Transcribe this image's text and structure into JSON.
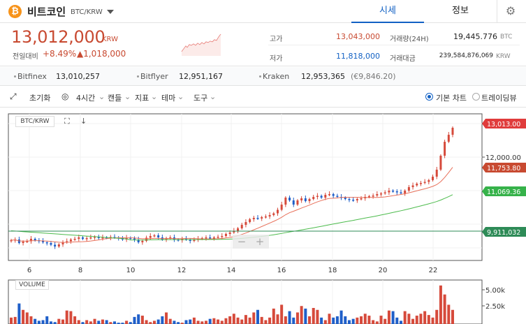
{
  "header": {
    "coin_logo": "₿",
    "coin_name": "비트코인",
    "pair": "BTC/KRW",
    "tabs": [
      {
        "label": "시세",
        "active": true
      },
      {
        "label": "정보",
        "active": false
      }
    ],
    "settings_icon": "gear-icon"
  },
  "price": {
    "current": "13,012,000",
    "unit": "KRW",
    "change_label": "전일대비",
    "change_pct": "+8.49%",
    "change_amt": "▲1,018,000",
    "color_up": "#c84a31",
    "color_down": "#1261c4"
  },
  "stats": {
    "high_label": "고가",
    "high_value": "13,043,000",
    "low_label": "저가",
    "low_value": "11,818,000",
    "volume_label": "거래량(24H)",
    "volume_value": "19,445.776",
    "volume_unit": "BTC",
    "amount_label": "거래대금",
    "amount_value": "239,584,876,069",
    "amount_unit": "KRW"
  },
  "exchanges": [
    {
      "name": "Bitfinex",
      "value": "13,010,257"
    },
    {
      "name": "Bitflyer",
      "value": "12,951,167"
    },
    {
      "name": "Kraken",
      "value": "12,953,365",
      "extra": "(€9,846.20)"
    }
  ],
  "toolbar": {
    "expand_icon": "⤢",
    "reset": "초기화",
    "interval": "4시간",
    "candle": "캔들",
    "indicator": "지표",
    "theme": "테마",
    "tools": "도구",
    "chart_basic": "기본 차트",
    "chart_tradingview": "트레이딩뷰"
  },
  "chart_overlay": {
    "pair_tag": "BTC/KRW",
    "volume_tag": "VOLUME",
    "zoom_out": "−",
    "zoom_in": "+"
  },
  "chart_data": {
    "type": "candlestick",
    "x_ticks": [
      "6",
      "8",
      "10",
      "12",
      "14",
      "16",
      "18",
      "20",
      "22"
    ],
    "y_ticks": [
      "12,000.00"
    ],
    "price_labels": [
      {
        "value": "13,013.00",
        "color": "#e03c3c"
      },
      {
        "value": "11,753.80",
        "color": "#c84a31"
      },
      {
        "value": "11,069.36",
        "color": "#36b24a"
      },
      {
        "value": "9,911,032",
        "color": "#2e8b57"
      }
    ],
    "volume_ticks": [
      "5.00k",
      "2.50k"
    ],
    "up_color": "#d64a3b",
    "down_color": "#1f5fc9",
    "ma_short_color": "#e8705a",
    "ma_long_color": "#4cbb4c",
    "ref_line_color": "#2e8b57",
    "closes": [
      9.78,
      9.8,
      9.7,
      9.74,
      9.75,
      9.82,
      9.78,
      9.76,
      9.72,
      9.7,
      9.65,
      9.6,
      9.66,
      9.72,
      9.75,
      9.8,
      9.82,
      9.86,
      9.82,
      9.84,
      9.86,
      9.88,
      9.84,
      9.86,
      9.85,
      9.87,
      9.86,
      9.84,
      9.8,
      9.85,
      9.83,
      9.8,
      9.72,
      9.76,
      9.85,
      9.9,
      9.92,
      9.86,
      9.8,
      9.84,
      9.86,
      9.8,
      9.78,
      9.82,
      9.8,
      9.76,
      9.8,
      9.82,
      9.84,
      9.86,
      9.84,
      9.86,
      9.88,
      9.9,
      9.96,
      10.0,
      10.05,
      10.12,
      10.22,
      10.3,
      10.38,
      10.42,
      10.4,
      10.44,
      10.46,
      10.5,
      10.55,
      10.65,
      10.8,
      11.0,
      10.92,
      10.8,
      10.92,
      10.98,
      10.9,
      10.96,
      11.02,
      11.05,
      11.0,
      11.08,
      11.1,
      11.05,
      11.02,
      11.0,
      10.96,
      10.94,
      10.92,
      10.96,
      10.98,
      11.02,
      11.04,
      11.06,
      11.1,
      11.12,
      11.15,
      11.2,
      11.18,
      11.15,
      11.12,
      11.2,
      11.3,
      11.35,
      11.4,
      11.42,
      11.45,
      11.5,
      11.6,
      11.8,
      12.2,
      12.6,
      12.8,
      13.0
    ],
    "volumes": [
      1.0,
      1.1,
      3.2,
      2.2,
      1.8,
      1.2,
      0.8,
      0.5,
      0.6,
      1.2,
      0.4,
      0.3,
      0.8,
      0.7,
      2.1,
      2.0,
      1.2,
      0.6,
      0.3,
      0.6,
      0.4,
      0.8,
      0.5,
      0.7,
      0.6,
      0.3,
      0.4,
      0.2,
      0.2,
      0.5,
      0.3,
      1.1,
      1.5,
      1.3,
      0.6,
      0.3,
      0.5,
      0.7,
      1.2,
      1.8,
      0.8,
      0.5,
      0.3,
      0.2,
      0.6,
      0.7,
      1.0,
      0.5,
      0.4,
      0.5,
      0.8,
      0.9,
      0.7,
      0.5,
      0.9,
      1.2,
      1.6,
      1.0,
      0.7,
      1.4,
      1.0,
      1.8,
      2.2,
      1.1,
      0.6,
      1.0,
      2.4,
      1.5,
      3.0,
      1.2,
      2.0,
      1.0,
      1.8,
      2.8,
      2.4,
      1.2,
      2.5,
      2.2,
      1.0,
      0.6,
      1.6,
      1.0,
      1.2,
      2.1,
      1.2,
      0.6,
      0.8,
      1.0,
      1.2,
      1.6,
      1.3,
      0.6,
      0.4,
      1.3,
      0.8,
      2.1,
      2.0,
      1.0,
      0.5,
      2.0,
      1.6,
      0.8,
      1.3,
      1.6,
      2.0,
      1.4,
      1.0,
      2.2,
      6.0,
      4.6,
      3.0,
      2.2
    ]
  }
}
